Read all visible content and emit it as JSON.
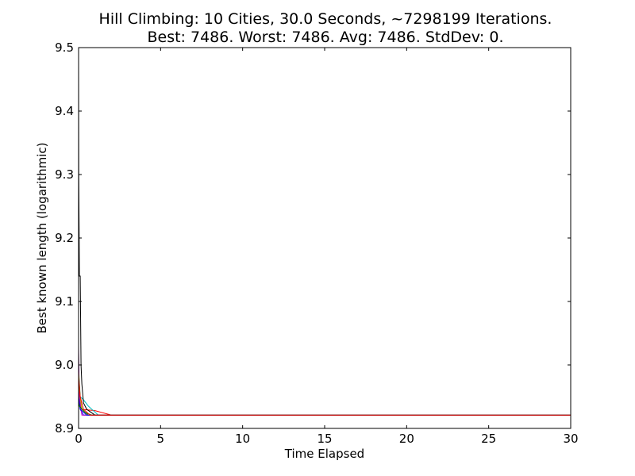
{
  "chart_data": {
    "type": "line",
    "title": "Hill Climbing: 10 Cities, 30.0 Seconds, ~7298199 Iterations.",
    "subtitle": "Best: 7486. Worst: 7486. Avg: 7486. StdDev: 0.",
    "xlabel": "Time Elapsed",
    "ylabel": "Best known length (logarithmic)",
    "xlim": [
      0,
      30
    ],
    "ylim": [
      8.9,
      9.5
    ],
    "xticks": [
      "0",
      "5",
      "10",
      "15",
      "20",
      "25",
      "30"
    ],
    "yticks": [
      "8.9",
      "9.0",
      "9.1",
      "9.2",
      "9.3",
      "9.4",
      "9.5"
    ],
    "grid": false,
    "series": [
      {
        "color": "#0000ff",
        "x": [
          0,
          0.02,
          0.05,
          0.1,
          0.3,
          30
        ],
        "y": [
          9.0,
          8.97,
          8.94,
          8.93,
          8.921,
          8.921
        ]
      },
      {
        "color": "#008000",
        "x": [
          0,
          0.03,
          0.1,
          0.2,
          0.6,
          30
        ],
        "y": [
          9.02,
          8.98,
          8.95,
          8.93,
          8.921,
          8.921
        ]
      },
      {
        "color": "#ff0000",
        "x": [
          0,
          0.05,
          0.2,
          1.0,
          2.0,
          30
        ],
        "y": [
          8.96,
          8.94,
          8.93,
          8.928,
          8.921,
          8.921
        ]
      },
      {
        "color": "#00bfbf",
        "x": [
          0,
          0.1,
          0.3,
          0.6,
          1.2,
          30
        ],
        "y": [
          8.97,
          8.95,
          8.945,
          8.935,
          8.921,
          8.921
        ]
      },
      {
        "color": "#bf00bf",
        "x": [
          0,
          0.02,
          0.05,
          0.2,
          30
        ],
        "y": [
          9.03,
          8.99,
          8.95,
          8.921,
          8.921
        ]
      },
      {
        "color": "#bfbf00",
        "x": [
          0,
          0.05,
          0.2,
          0.5,
          30
        ],
        "y": [
          8.99,
          8.96,
          8.93,
          8.921,
          8.921
        ]
      },
      {
        "color": "#000000",
        "x": [
          0,
          0.01,
          0.05,
          0.1,
          0.15,
          0.2,
          0.3,
          0.5,
          1.0,
          30
        ],
        "y": [
          9.48,
          9.3,
          9.14,
          9.14,
          9.0,
          8.97,
          8.94,
          8.93,
          8.921,
          8.921
        ]
      },
      {
        "color": "#0000ff",
        "x": [
          0,
          0.1,
          0.5,
          30
        ],
        "y": [
          8.95,
          8.93,
          8.921,
          8.921
        ]
      },
      {
        "color": "#008000",
        "x": [
          0,
          0.05,
          0.4,
          0.8,
          30
        ],
        "y": [
          8.94,
          8.935,
          8.925,
          8.921,
          8.921
        ]
      },
      {
        "color": "#ff0000",
        "x": [
          0,
          0.1,
          0.3,
          0.7,
          30
        ],
        "y": [
          8.98,
          8.95,
          8.93,
          8.921,
          8.921
        ]
      }
    ]
  }
}
